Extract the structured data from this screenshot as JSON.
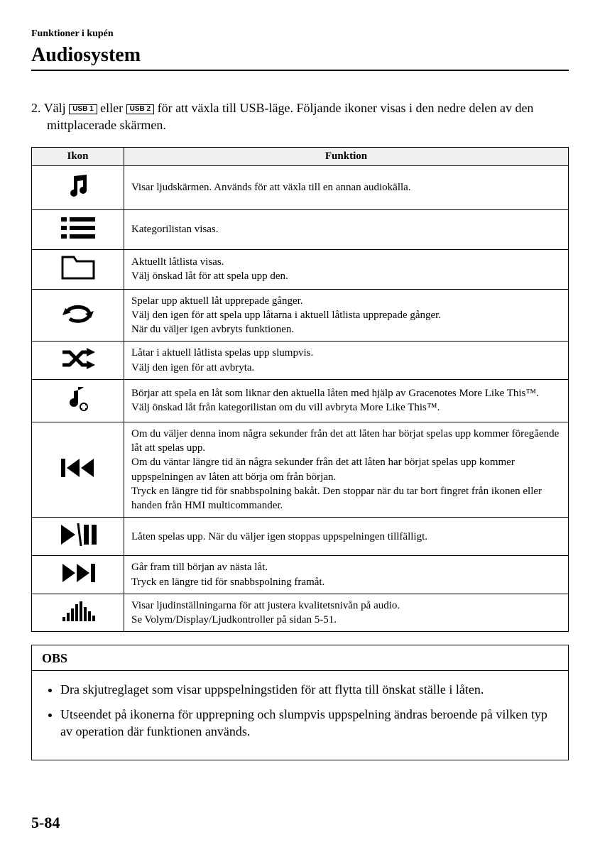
{
  "header": {
    "breadcrumb": "Funktioner i kupén",
    "title": "Audiosystem"
  },
  "instruction": {
    "number": "2.",
    "text_before": "Välj ",
    "usb1": "USB 1",
    "text_middle": " eller ",
    "usb2": "USB 2",
    "text_after": " för att växla till USB-läge. Följande ikoner visas i den nedre delen av den mittplacerade skärmen."
  },
  "table": {
    "col_icon": "Ikon",
    "col_function": "Funktion",
    "rows": [
      {
        "icon": "music-note",
        "text": "Visar ljudskärmen. Används för att växla till en annan audiokälla."
      },
      {
        "icon": "list",
        "text": "Kategorilistan visas."
      },
      {
        "icon": "folder",
        "text": "Aktuellt låtlista visas.\nVälj önskad låt för att spela upp den."
      },
      {
        "icon": "repeat",
        "text": "Spelar upp aktuell låt upprepade gånger.\nVälj den igen för att spela upp låtarna i aktuell låtlista upprepade gånger.\nNär du väljer igen avbryts funktionen."
      },
      {
        "icon": "shuffle",
        "text": "Låtar i aktuell låtlista spelas upp slumpvis.\nVälj den igen för att avbryta."
      },
      {
        "icon": "note-plus",
        "text": "Börjar att spela en låt som liknar den aktuella låten med hjälp av Gracenotes More Like This™.\nVälj önskad låt från kategorilistan om du vill avbryta More Like This™."
      },
      {
        "icon": "prev",
        "text": "Om du väljer denna inom några sekunder från det att låten har börjat spelas upp kommer föregående låt att spelas upp.\nOm du väntar längre tid än några sekunder från det att låten har börjat spelas upp kommer uppspelningen av låten att börja om från början.\nTryck en längre tid för snabbspolning bakåt. Den stoppar när du tar bort fingret från ikonen eller handen från HMI multicommander."
      },
      {
        "icon": "play-pause",
        "text": "Låten spelas upp. När du väljer igen stoppas uppspelningen tillfälligt."
      },
      {
        "icon": "next",
        "text": "Går fram till början av nästa låt.\nTryck en längre tid för snabbspolning framåt."
      },
      {
        "icon": "equalizer",
        "text": "Visar ljudinställningarna för att justera kvalitetsnivån på audio.\nSe Volym/Display/Ljudkontroller på sidan 5-51."
      }
    ]
  },
  "obs": {
    "title": "OBS",
    "items": [
      "Dra skjutreglaget som visar uppspelningstiden för att flytta till önskat ställe i låten.",
      "Utseendet på ikonerna för upprepning och slumpvis uppspelning ändras beroende på vilken typ av operation där funktionen används."
    ]
  },
  "page_number": "5-84",
  "icons_svg": {
    "music-note": "<svg width='40' height='40' viewBox='0 0 40 40'><path d='M14 6 L32 4 L32 26 A5 5 0 1 1 27 21 L27 12 L19 13 L19 30 A5 5 0 1 1 14 25 Z' fill='#000'/></svg>",
    "list": "<svg width='48' height='34' viewBox='0 0 48 34'><rect x='0' y='2' width='8' height='6' fill='#000'/><rect x='12' y='2' width='36' height='6' fill='#000'/><rect x='0' y='14' width='8' height='6' fill='#000'/><rect x='12' y='14' width='36' height='6' fill='#000'/><rect x='0' y='26' width='8' height='6' fill='#000'/><rect x='12' y='26' width='36' height='6' fill='#000'/></svg>",
    "folder": "<svg width='48' height='34' viewBox='0 0 48 34'><path d='M2 8 L2 32 L46 32 L46 8 L22 8 L18 2 L2 2 Z' fill='none' stroke='#000' stroke-width='3'/></svg>",
    "repeat": "<svg width='48' height='30' viewBox='0 0 48 30'><path d='M8 15 A16 10 0 1 1 12 23' fill='none' stroke='#000' stroke-width='5'/><path d='M6 8 L14 14 L2 18 Z' fill='#000'/><path d='M42 22 L34 16 L46 12 Z' fill='#000'/></svg>",
    "shuffle": "<svg width='48' height='30' viewBox='0 0 48 30'><path d='M2 6 L12 6 L30 24 L38 24' fill='none' stroke='#000' stroke-width='5'/><path d='M2 24 L12 24 L30 6 L38 6' fill='none' stroke='#000' stroke-width='5'/><path d='M36 0 L48 6 L36 12 Z' fill='#000'/><path d='M36 18 L48 24 L36 30 Z' fill='#000'/></svg>",
    "note-plus": "<svg width='36' height='38' viewBox='0 0 36 38'><path d='M18 2 L18 24 A6 6 0 1 1 12 18 L12 8 Q22 6 26 2 Z' fill='#000'/><circle cx='26' cy='30' r='6' fill='#000'/><rect x='24' y='26' width='4' height='8' fill='#fff'/><rect x='22' y='28' width='8' height='4' fill='#fff'/></svg>",
    "prev": "<svg width='48' height='30' viewBox='0 0 48 30'><rect x='0' y='2' width='6' height='26' fill='#000'/><path d='M26 2 L8 15 L26 28 Z' fill='#000'/><path d='M46 2 L28 15 L46 28 Z' fill='#000'/></svg>",
    "play-pause": "<svg width='52' height='32' viewBox='0 0 52 32'><path d='M2 2 L22 16 L2 30 Z' fill='#000'/><line x1='26' y1='0' x2='30' y2='32' stroke='#000' stroke-width='3'/><rect x='34' y='2' width='7' height='28' fill='#000'/><rect x='45' y='2' width='7' height='28' fill='#000'/></svg>",
    "next": "<svg width='48' height='30' viewBox='0 0 48 30'><path d='M2 2 L20 15 L2 28 Z' fill='#000'/><path d='M22 2 L40 15 L22 28 Z' fill='#000'/><rect x='42' y='2' width='6' height='26' fill='#000'/></svg>",
    "equalizer": "<svg width='48' height='28' viewBox='0 0 48 28'><rect x='2' y='22' width='4' height='6' fill='#000'/><rect x='8' y='16' width='4' height='12' fill='#000'/><rect x='14' y='10' width='4' height='18' fill='#000'/><rect x='20' y='4' width='4' height='24' fill='#000'/><rect x='26' y='0' width='4' height='28' fill='#000'/><rect x='32' y='8' width='4' height='20' fill='#000'/><rect x='38' y='14' width='4' height='14' fill='#000'/><rect x='44' y='20' width='4' height='8' fill='#000'/></svg>"
  }
}
